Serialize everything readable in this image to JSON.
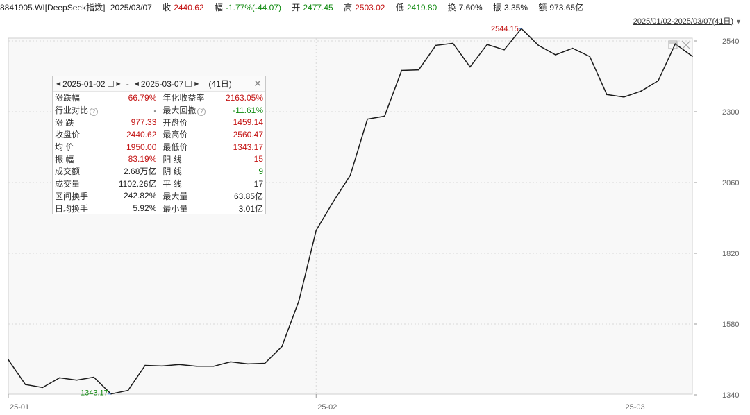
{
  "header": {
    "code": "8841905.WI[DeepSeek指数]",
    "date": "2025/03/07",
    "close_label": "收",
    "close": "2440.62",
    "change_label": "幅",
    "change": "-1.77%(-44.07)",
    "open_label": "开",
    "open": "2477.45",
    "high_label": "高",
    "high": "2503.02",
    "low_label": "低",
    "low": "2419.80",
    "turnover_label": "换",
    "turnover": "7.60%",
    "amplitude_label": "振",
    "amplitude": "3.35%",
    "amount_label": "额",
    "amount": "973.65亿"
  },
  "range_label": "2025/01/02-2025/03/07(41日)",
  "colors": {
    "up": "#c41414",
    "down": "#108a10",
    "line": "#1a1a1a",
    "grid": "#d8d8d8"
  },
  "panel": {
    "start_date": "2025-01-02",
    "end_date": "2025-03-07",
    "sep": "-",
    "days": "(41日)",
    "rows": [
      [
        {
          "label": "涨跌幅",
          "value": "66.79%",
          "color": "up"
        },
        {
          "label": "年化收益率",
          "value": "2163.05%",
          "color": "up"
        }
      ],
      [
        {
          "label": "行业对比",
          "value": "-",
          "color": "none",
          "help": true
        },
        {
          "label": "最大回撤",
          "value": "-11.61%",
          "color": "down",
          "help": true
        }
      ],
      [
        {
          "label": "涨 跌",
          "value": "977.33",
          "color": "up"
        },
        {
          "label": "开盘价",
          "value": "1459.14",
          "color": "up"
        }
      ],
      [
        {
          "label": "收盘价",
          "value": "2440.62",
          "color": "up"
        },
        {
          "label": "最高价",
          "value": "2560.47",
          "color": "up"
        }
      ],
      [
        {
          "label": "均 价",
          "value": "1950.00",
          "color": "up"
        },
        {
          "label": "最低价",
          "value": "1343.17",
          "color": "up"
        }
      ],
      [
        {
          "label": "振 幅",
          "value": "83.19%",
          "color": "up"
        },
        {
          "label": "阳 线",
          "value": "15",
          "color": "up"
        }
      ],
      [
        {
          "label": "成交额",
          "value": "2.68万亿",
          "color": "none"
        },
        {
          "label": "阴 线",
          "value": "9",
          "color": "down"
        }
      ],
      [
        {
          "label": "成交量",
          "value": "1102.26亿",
          "color": "none"
        },
        {
          "label": "平 线",
          "value": "17",
          "color": "none"
        }
      ],
      [
        {
          "label": "区间换手",
          "value": "242.82%",
          "color": "none"
        },
        {
          "label": "最大量",
          "value": "63.85亿",
          "color": "none"
        }
      ],
      [
        {
          "label": "日均换手",
          "value": "5.92%",
          "color": "none"
        },
        {
          "label": "最小量",
          "value": "3.01亿",
          "color": "none"
        }
      ]
    ]
  },
  "chart_data": {
    "type": "line",
    "y_ticks": [
      "2540",
      "2300",
      "2060",
      "1820",
      "1580",
      "1340"
    ],
    "ylim": [
      1340,
      2540
    ],
    "x_ticks": [
      {
        "label": "25-01",
        "index": 0
      },
      {
        "label": "25-02",
        "index": 18
      },
      {
        "label": "25-03",
        "index": 36
      }
    ],
    "series": [
      {
        "values": [
          1459,
          1375,
          1365,
          1398,
          1390,
          1400,
          1343,
          1355,
          1440,
          1438,
          1443,
          1437,
          1437,
          1452,
          1445,
          1447,
          1504,
          1660,
          1898,
          1995,
          2085,
          2275,
          2285,
          2440,
          2442,
          2525,
          2532,
          2452,
          2528,
          2510,
          2582,
          2525,
          2493,
          2515,
          2487,
          2358,
          2350,
          2370,
          2405,
          2530,
          2488
        ]
      }
    ],
    "annotations": [
      {
        "text": "2544.15",
        "index": 30,
        "color": "up"
      },
      {
        "text": "1343.17",
        "index": 6,
        "color": "down"
      }
    ]
  }
}
